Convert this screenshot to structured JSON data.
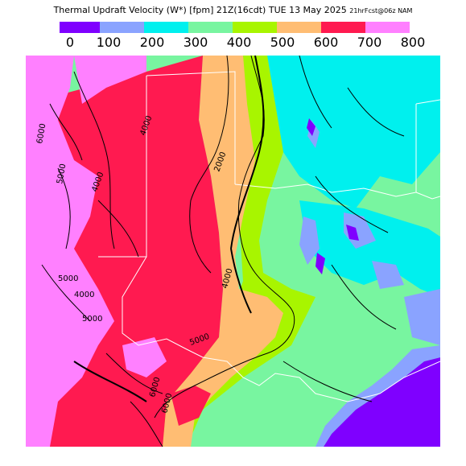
{
  "title": {
    "main": "Thermal Updraft Velocity (W*) [fpm] 21Z(16cdt) TUE 13 May 2025",
    "small": "21hrFcst@06z NAM"
  },
  "legend": {
    "colors": [
      "#7f00ff",
      "#8aa3ff",
      "#00f0ee",
      "#78f5a0",
      "#a8f500",
      "#ffbd73",
      "#ff1a50",
      "#ff80ff"
    ],
    "ticks": [
      "0",
      "100",
      "200",
      "300",
      "400",
      "500",
      "600",
      "700",
      "800"
    ]
  },
  "map": {
    "contour_labels": [
      "6000",
      "5000",
      "4000",
      "4000",
      "2000",
      "4000",
      "5000",
      "6000",
      "6000",
      "4000",
      "5000",
      "5000"
    ]
  }
}
